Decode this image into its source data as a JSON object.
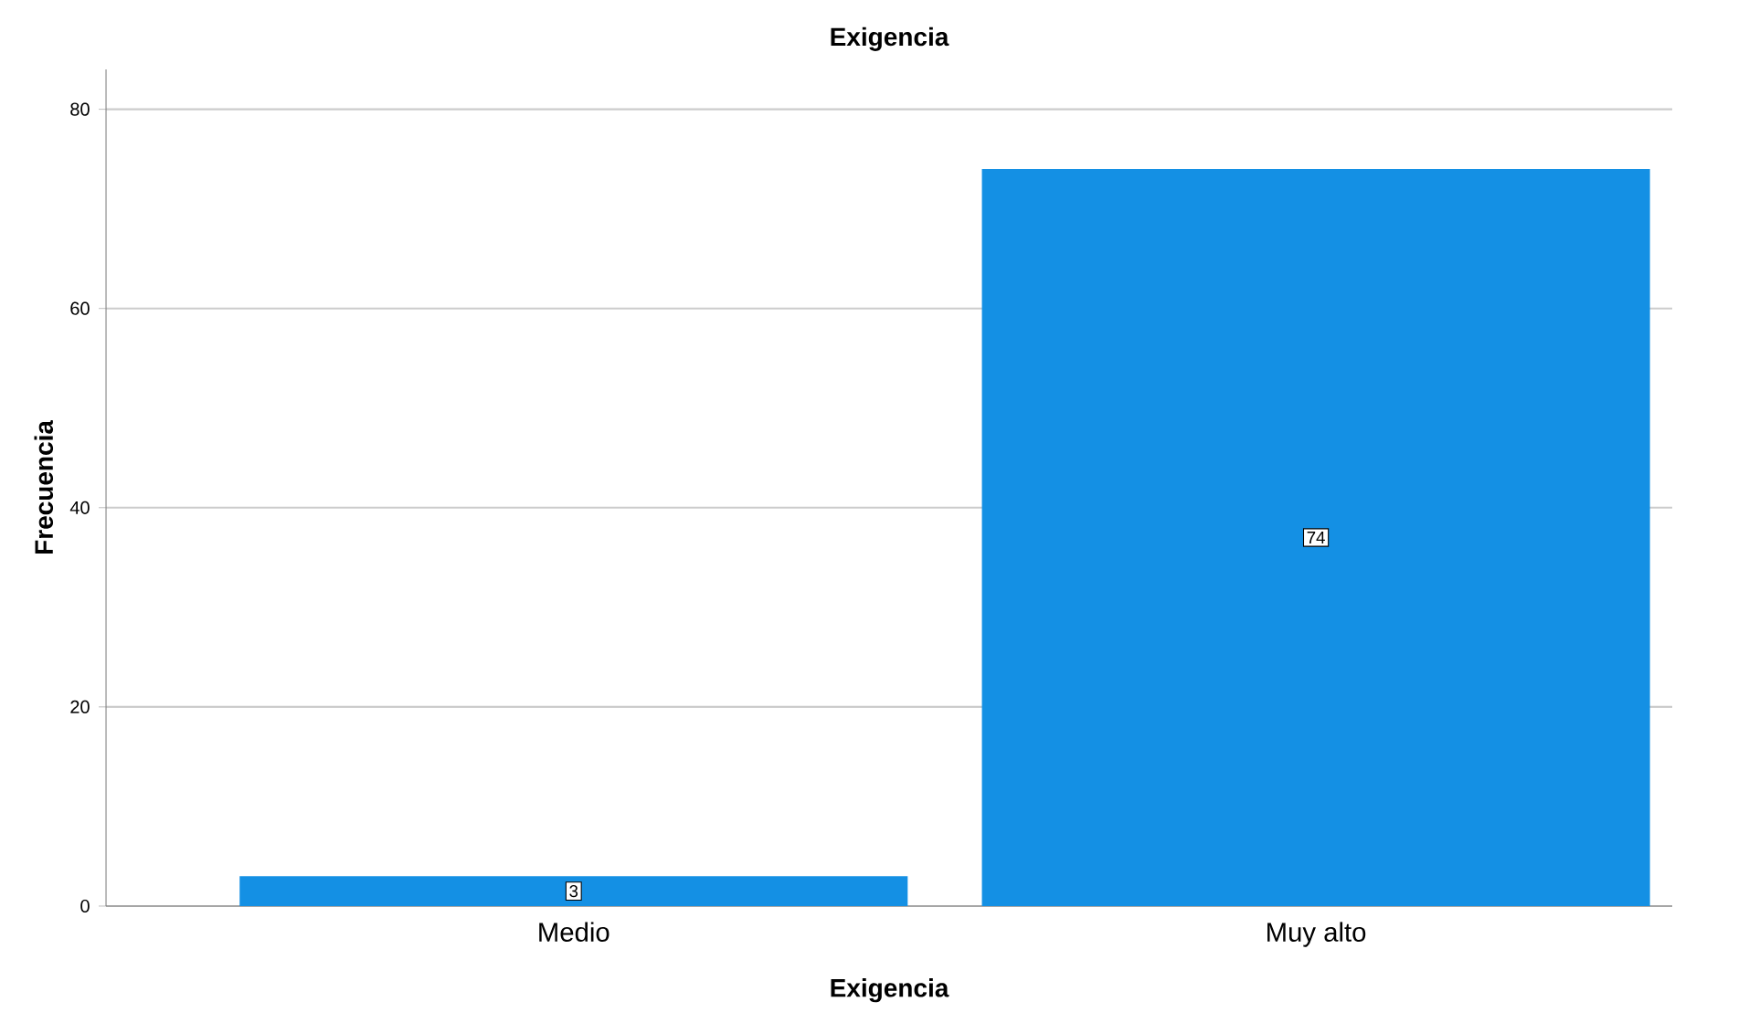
{
  "chart_data": {
    "type": "bar",
    "title": "Exigencia",
    "xlabel": "Exigencia",
    "ylabel": "Frecuencia",
    "categories": [
      "Medio",
      "Muy alto"
    ],
    "values": [
      3,
      74
    ],
    "color": "#1490e4",
    "ylim": [
      0,
      84
    ],
    "yticks": [
      0,
      20,
      40,
      60,
      80
    ],
    "grid": "y",
    "data_labels": true
  }
}
